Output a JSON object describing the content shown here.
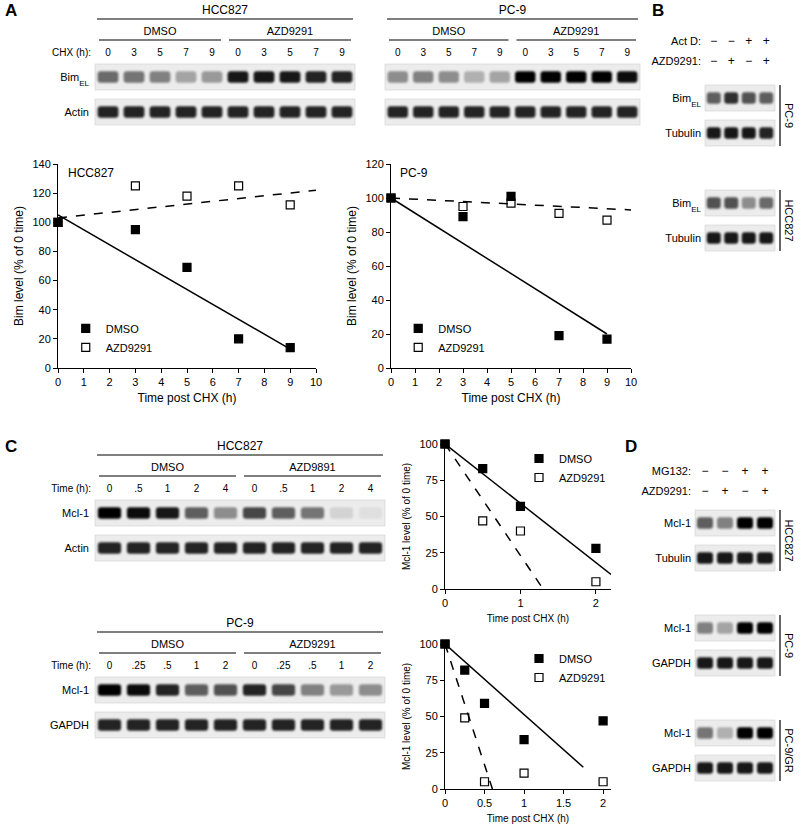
{
  "chart_data": [
    {
      "type": "scatter",
      "title": "HCC827",
      "x_label": "Time post CHX (h)",
      "y_label": "Bim level (% of 0 time)",
      "xlim": [
        0,
        10
      ],
      "xticks": [
        0,
        1,
        2,
        3,
        4,
        5,
        6,
        7,
        8,
        9,
        10
      ],
      "ylim": [
        0,
        140
      ],
      "yticks": [
        0,
        20,
        40,
        60,
        80,
        100,
        120,
        140
      ],
      "grid": false,
      "legend": "lower left",
      "series": [
        {
          "name": "DMSO",
          "color": "#000000",
          "marker": "square",
          "line_style": "solid",
          "x": [
            0,
            3,
            5,
            7,
            9
          ],
          "values": [
            100,
            95,
            69,
            20,
            14
          ],
          "trend": {
            "x": [
              0,
              9
            ],
            "values": [
              105,
              13
            ]
          }
        },
        {
          "name": "AZD9291",
          "color": "#000000",
          "marker": "square-open",
          "line_style": "dash",
          "x": [
            0,
            3,
            5,
            7,
            9
          ],
          "values": [
            100,
            125,
            118,
            125,
            112
          ],
          "trend": {
            "x": [
              0,
              10
            ],
            "values": [
              103,
              122
            ]
          }
        }
      ]
    },
    {
      "type": "scatter",
      "title": "PC-9",
      "x_label": "Time post CHX (h)",
      "y_label": "Bim level (% of 0 time)",
      "xlim": [
        0,
        10
      ],
      "xticks": [
        0,
        1,
        2,
        3,
        4,
        5,
        6,
        7,
        8,
        9,
        10
      ],
      "ylim": [
        0,
        120
      ],
      "yticks": [
        0,
        20,
        40,
        60,
        80,
        100,
        120
      ],
      "grid": false,
      "legend": "lower left",
      "series": [
        {
          "name": "DMSO",
          "color": "#000000",
          "marker": "square",
          "line_style": "solid",
          "x": [
            0,
            3,
            5,
            7,
            9
          ],
          "values": [
            100,
            89,
            101,
            19,
            17
          ],
          "trend": {
            "x": [
              0,
              9
            ],
            "values": [
              100,
              20
            ]
          }
        },
        {
          "name": "AZD9291",
          "color": "#000000",
          "marker": "square-open",
          "line_style": "dash",
          "x": [
            0,
            3,
            5,
            7,
            9
          ],
          "values": [
            100,
            95,
            97,
            91,
            87
          ],
          "trend": {
            "x": [
              0,
              10
            ],
            "values": [
              100,
              93
            ]
          }
        }
      ]
    },
    {
      "type": "scatter",
      "x_label": "Time post CHX (h)",
      "y_label": "Mcl-1 level (% of 0 time)",
      "xlim": [
        0,
        2.2
      ],
      "xticks": [
        0,
        1,
        2
      ],
      "ylim": [
        0,
        100
      ],
      "yticks": [
        0,
        25,
        50,
        75,
        100
      ],
      "grid": false,
      "legend": "upper right",
      "series": [
        {
          "name": "DMSO",
          "color": "#000000",
          "marker": "square",
          "line_style": "solid",
          "x": [
            0,
            0.5,
            1,
            2
          ],
          "values": [
            100,
            83,
            57,
            28
          ],
          "trend": {
            "x": [
              0,
              2.2
            ],
            "values": [
              100,
              10
            ]
          }
        },
        {
          "name": "AZD9291",
          "color": "#000000",
          "marker": "square-open",
          "line_style": "dash",
          "x": [
            0,
            0.5,
            1,
            2
          ],
          "values": [
            100,
            47,
            40,
            5
          ],
          "trend": {
            "x": [
              0,
              1.3
            ],
            "values": [
              100,
              0
            ]
          }
        }
      ]
    },
    {
      "type": "scatter",
      "x_label": "Time post CHX (h)",
      "y_label": "Mcl-1 level (% of 0 time)",
      "xlim": [
        0,
        2.1
      ],
      "xticks": [
        0,
        0.5,
        1,
        1.5,
        2
      ],
      "ylim": [
        0,
        100
      ],
      "yticks": [
        0,
        25,
        50,
        75,
        100
      ],
      "grid": false,
      "legend": "upper right",
      "series": [
        {
          "name": "DMSO",
          "color": "#000000",
          "marker": "square",
          "line_style": "solid",
          "x": [
            0,
            0.25,
            0.5,
            1,
            2
          ],
          "values": [
            100,
            82,
            59,
            34,
            47
          ],
          "trend": {
            "x": [
              0,
              1.75
            ],
            "values": [
              100,
              15
            ]
          }
        },
        {
          "name": "AZD9291",
          "color": "#000000",
          "marker": "square-open",
          "line_style": "dash",
          "x": [
            0,
            0.25,
            0.5,
            1,
            2
          ],
          "values": [
            100,
            49,
            5,
            11,
            5
          ],
          "trend": {
            "x": [
              0,
              0.6
            ],
            "values": [
              100,
              0
            ]
          }
        }
      ]
    }
  ],
  "figure": {
    "panels": [
      {
        "letter": "A",
        "blots": [
          {
            "title": "HCC827",
            "time_label": "CHX (h):",
            "groups": [
              {
                "name": "DMSO",
                "times": [
                  "0",
                  "3",
                  "5",
                  "7",
                  "9"
                ]
              },
              {
                "name": "AZD9291",
                "times": [
                  "0",
                  "3",
                  "5",
                  "7",
                  "9"
                ]
              }
            ],
            "rows": [
              {
                "label": "Bim",
                "sub": "EL",
                "bands": [
                  0.55,
                  0.5,
                  0.45,
                  0.3,
                  0.35,
                  0.9,
                  0.9,
                  0.9,
                  0.85,
                  0.85
                ]
              },
              {
                "label": "Actin",
                "bands": [
                  0.85,
                  0.85,
                  0.85,
                  0.85,
                  0.85,
                  0.85,
                  0.85,
                  0.85,
                  0.85,
                  0.85
                ]
              }
            ]
          },
          {
            "title": "PC-9",
            "groups": [
              {
                "name": "DMSO",
                "times": [
                  "0",
                  "3",
                  "5",
                  "7",
                  "9"
                ]
              },
              {
                "name": "AZD9291",
                "times": [
                  "0",
                  "3",
                  "5",
                  "7",
                  "9"
                ]
              }
            ],
            "rows": [
              {
                "bands": [
                  0.4,
                  0.45,
                  0.4,
                  0.25,
                  0.3,
                  1,
                  1,
                  1,
                  1,
                  0.95
                ]
              },
              {
                "bands": [
                  0.85,
                  0.85,
                  0.85,
                  0.85,
                  0.85,
                  0.85,
                  0.85,
                  0.85,
                  0.85,
                  0.85
                ]
              }
            ]
          }
        ]
      },
      {
        "letter": "B",
        "signs": [
          {
            "label": "Act D:",
            "values": [
              "−",
              "−",
              "+",
              "+"
            ]
          },
          {
            "label": "AZD9291:",
            "values": [
              "−",
              "+",
              "−",
              "+"
            ]
          }
        ],
        "blocks": [
          {
            "cell_line": "PC-9",
            "rows": [
              {
                "label": "Bim",
                "sub": "EL",
                "bands": [
                  0.6,
                  0.8,
                  0.65,
                  0.6
                ]
              },
              {
                "label": "Tubulin",
                "bands": [
                  0.9,
                  0.9,
                  0.9,
                  0.85
                ]
              }
            ]
          },
          {
            "cell_line": "HCC827",
            "rows": [
              {
                "label": "Bim",
                "sub": "EL",
                "bands": [
                  0.65,
                  0.65,
                  0.4,
                  0.55
                ]
              },
              {
                "label": "Tubulin",
                "bands": [
                  0.9,
                  0.9,
                  0.9,
                  0.9
                ]
              }
            ]
          }
        ]
      },
      {
        "letter": "C",
        "blots": [
          {
            "title": "HCC827",
            "time_label": "Time (h):",
            "groups": [
              {
                "name": "DMSO",
                "times": [
                  "0",
                  ".5",
                  "1",
                  "2",
                  "4"
                ]
              },
              {
                "name": "AZD9891",
                "times": [
                  "0",
                  ".5",
                  "1",
                  "2",
                  "4"
                ]
              }
            ],
            "rows": [
              {
                "label": "Mcl-1",
                "bands": [
                  1,
                  0.95,
                  0.9,
                  0.6,
                  0.4,
                  0.7,
                  0.6,
                  0.5,
                  0.1,
                  0.05
                ]
              },
              {
                "label": "Actin",
                "bands": [
                  0.85,
                  0.85,
                  0.85,
                  0.85,
                  0.85,
                  0.85,
                  0.85,
                  0.85,
                  0.85,
                  0.85
                ]
              }
            ]
          },
          {
            "title": "PC-9",
            "time_label": "Time (h):",
            "groups": [
              {
                "name": "DMSO",
                "times": [
                  "0",
                  ".25",
                  ".5",
                  "1",
                  "2"
                ]
              },
              {
                "name": "AZD9291",
                "times": [
                  "0",
                  ".25",
                  ".5",
                  "1",
                  "2"
                ]
              }
            ],
            "rows": [
              {
                "label": "Mcl-1",
                "bands": [
                  1,
                  0.95,
                  0.85,
                  0.6,
                  0.65,
                  0.85,
                  0.7,
                  0.45,
                  0.35,
                  0.4
                ]
              },
              {
                "label": "GAPDH",
                "bands": [
                  0.85,
                  0.85,
                  0.85,
                  0.85,
                  0.85,
                  0.85,
                  0.85,
                  0.85,
                  0.85,
                  0.85
                ]
              }
            ]
          }
        ]
      },
      {
        "letter": "D",
        "signs": [
          {
            "label": "MG132:",
            "values": [
              "−",
              "−",
              "+",
              "+"
            ]
          },
          {
            "label": "AZD9291:",
            "values": [
              "−",
              "+",
              "−",
              "+"
            ]
          }
        ],
        "blocks": [
          {
            "cell_line": "HCC827",
            "rows": [
              {
                "label": "Mcl-1",
                "bands": [
                  0.6,
                  0.45,
                  1,
                  1
                ]
              },
              {
                "label": "Tubulin",
                "bands": [
                  0.9,
                  0.9,
                  0.9,
                  0.9
                ]
              }
            ]
          },
          {
            "cell_line": "PC-9",
            "rows": [
              {
                "label": "Mcl-1",
                "bands": [
                  0.45,
                  0.3,
                  1,
                  1
                ]
              },
              {
                "label": "GAPDH",
                "bands": [
                  0.9,
                  0.9,
                  0.9,
                  0.9
                ]
              }
            ]
          },
          {
            "cell_line": "PC-9/GR",
            "rows": [
              {
                "label": "Mcl-1",
                "bands": [
                  0.5,
                  0.25,
                  1,
                  1
                ]
              },
              {
                "label": "GAPDH",
                "bands": [
                  0.9,
                  0.9,
                  0.9,
                  0.9
                ]
              }
            ]
          }
        ]
      }
    ]
  }
}
